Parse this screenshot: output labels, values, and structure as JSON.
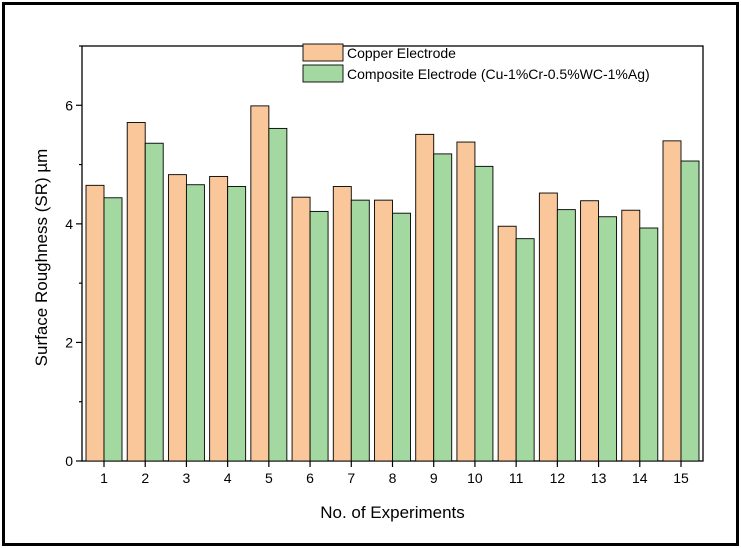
{
  "chart_data": {
    "type": "bar",
    "title": "",
    "xlabel": "No. of Experiments",
    "ylabel": "Surface Roughness (SR) µm",
    "categories": [
      "1",
      "2",
      "3",
      "4",
      "5",
      "6",
      "7",
      "8",
      "9",
      "10",
      "11",
      "12",
      "13",
      "14",
      "15"
    ],
    "series": [
      {
        "name": "Copper Electrode",
        "color": "#f9c79a",
        "values": [
          4.65,
          5.71,
          4.83,
          4.8,
          5.99,
          4.45,
          4.63,
          4.4,
          5.51,
          5.38,
          3.96,
          4.52,
          4.39,
          4.23,
          5.4
        ]
      },
      {
        "name": "Composite Electrode (Cu-1%Cr-0.5%WC-1%Ag)",
        "color": "#a3d9a0",
        "values": [
          4.44,
          5.36,
          4.66,
          4.63,
          5.61,
          4.21,
          4.4,
          4.18,
          5.18,
          4.97,
          3.75,
          4.24,
          4.12,
          3.93,
          5.06
        ]
      }
    ],
    "ylim": [
      0,
      7
    ],
    "yticks": [
      0,
      2,
      4,
      6
    ],
    "grid": false,
    "legend_position": "top-right"
  }
}
